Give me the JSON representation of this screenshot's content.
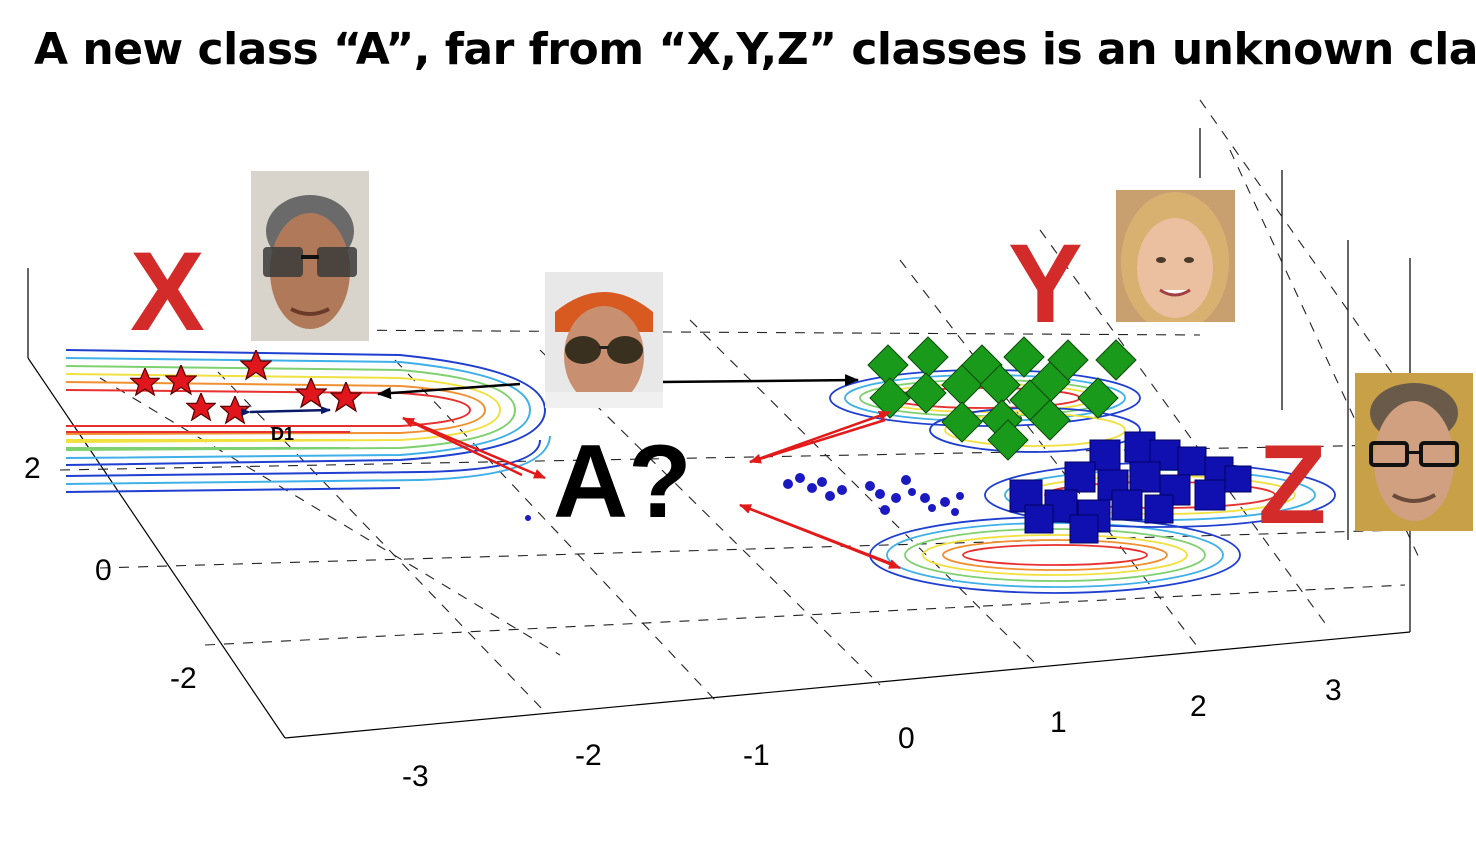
{
  "title": "A new class “A”, far from “X,Y,Z” classes is an unknown class",
  "labels": {
    "class_x": "X",
    "class_y": "Y",
    "class_z": "Z",
    "unknown": "A?",
    "distance": "D1"
  },
  "axis_ticks": {
    "z": [
      "2",
      "0",
      "-2"
    ],
    "x": [
      "-3",
      "-2",
      "-1",
      "0",
      "1",
      "2",
      "3"
    ]
  },
  "colors": {
    "label_red": "#d32a2a",
    "star_red": "#e0161c",
    "diamond_green": "#1a9a1a",
    "square_blue": "#1010b0",
    "dot_blue": "#1a1ac0",
    "arrow_red": "#e31a1a",
    "arrow_black": "#000000"
  },
  "icons": {
    "star": "star-marker",
    "diamond": "diamond-marker",
    "square": "square-marker"
  }
}
